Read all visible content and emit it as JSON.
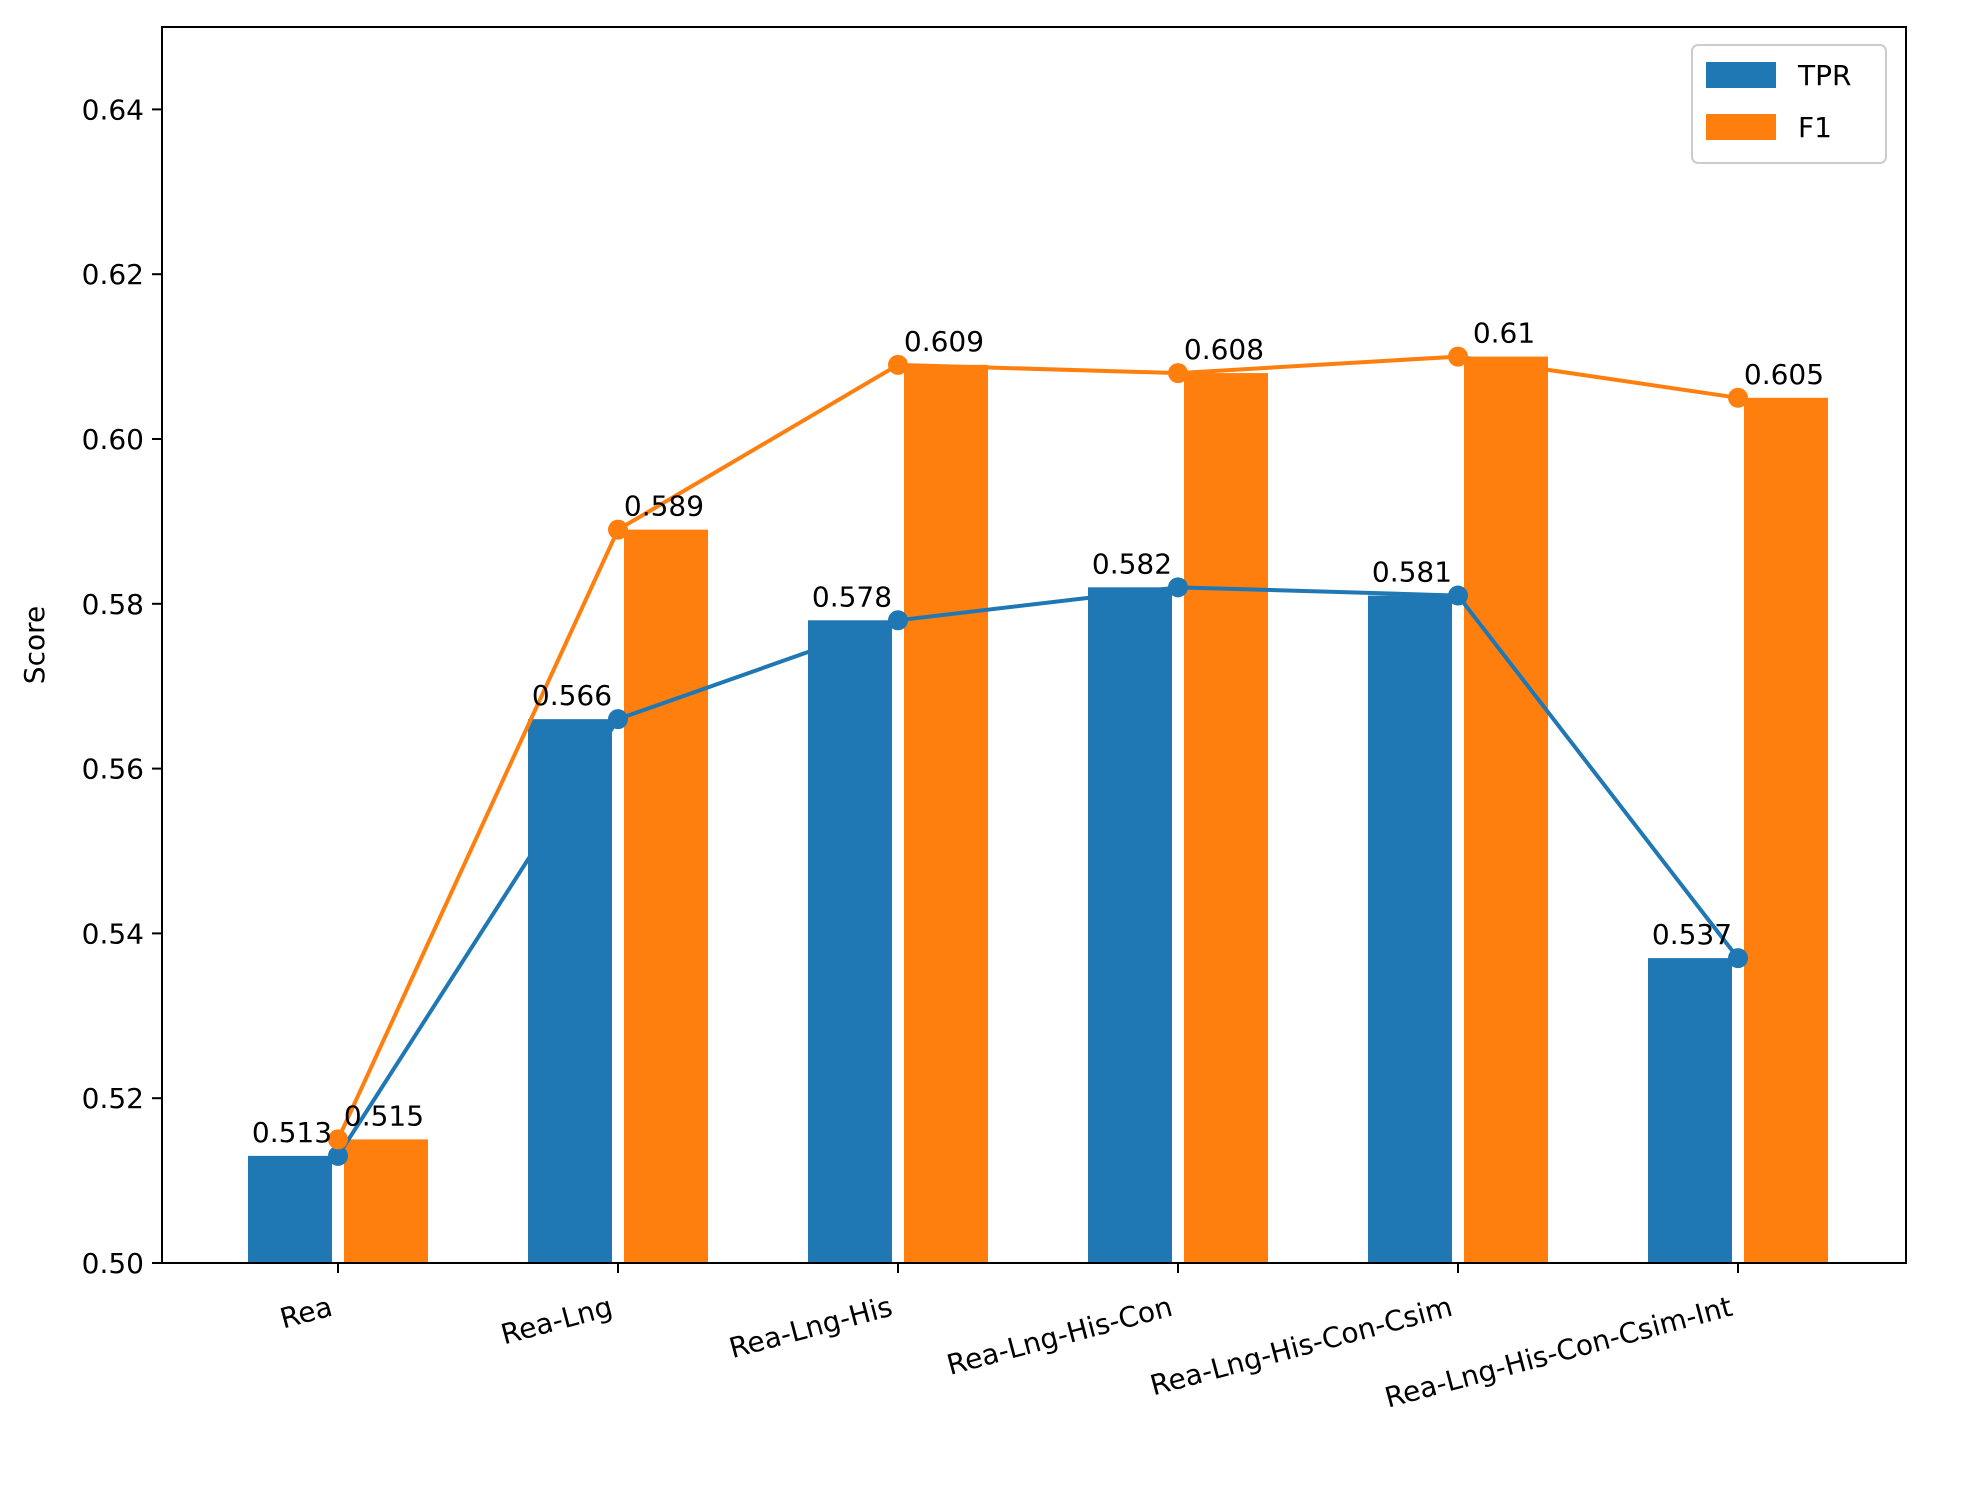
{
  "chart_data": {
    "type": "bar",
    "title": "",
    "xlabel": "",
    "ylabel": "Score",
    "ylim": [
      0.5,
      0.65
    ],
    "yticks": [
      "0.50",
      "0.52",
      "0.54",
      "0.56",
      "0.58",
      "0.60",
      "0.62",
      "0.64"
    ],
    "categories": [
      "Rea",
      "Rea-Lng",
      "Rea-Lng-His",
      "Rea-Lng-His-Con",
      "Rea-Lng-His-Con-Csim",
      "Rea-Lng-His-Con-Csim-Int"
    ],
    "series": [
      {
        "name": "TPR",
        "color": "#1f77b4",
        "values": [
          0.513,
          0.566,
          0.578,
          0.582,
          0.581,
          0.537
        ],
        "labels": [
          "0.513",
          "0.566",
          "0.578",
          "0.582",
          "0.581",
          "0.537"
        ]
      },
      {
        "name": "F1",
        "color": "#ff7f0e",
        "values": [
          0.515,
          0.589,
          0.609,
          0.608,
          0.61,
          0.605
        ],
        "labels": [
          "0.515",
          "0.589",
          "0.609",
          "0.608",
          "0.61",
          "0.605"
        ]
      }
    ],
    "legend": {
      "position": "top-right",
      "entries": [
        "TPR",
        "F1"
      ]
    },
    "grid": false
  }
}
